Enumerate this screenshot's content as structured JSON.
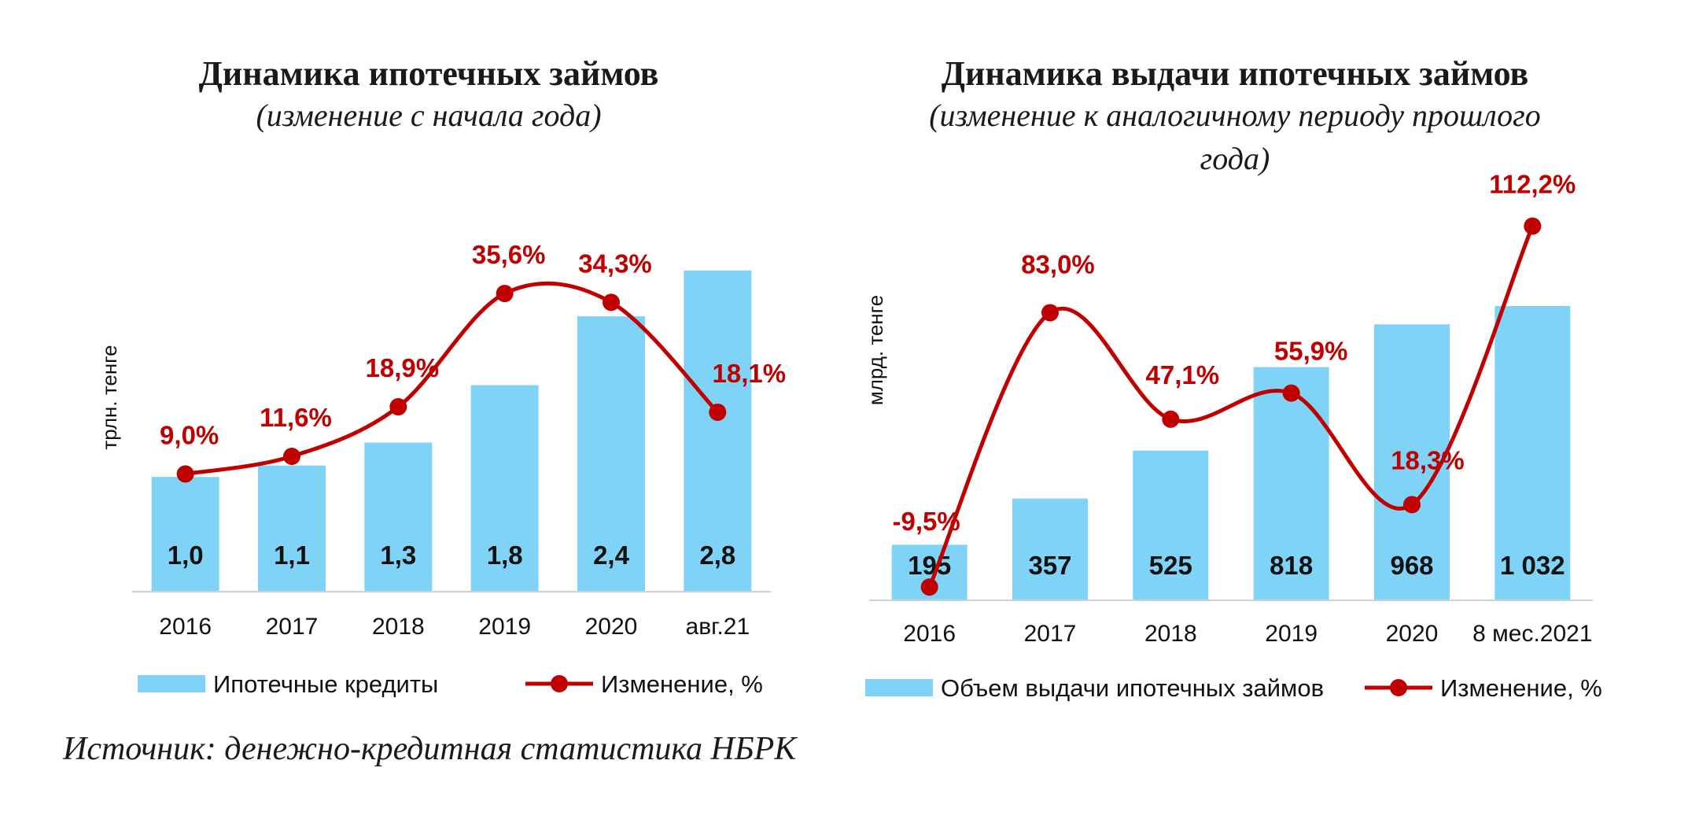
{
  "chart_data": [
    {
      "type": "bar",
      "title": "Динамика ипотечных займов",
      "subtitle": [
        "(изменение с начала года)"
      ],
      "ylabel": "трлн. тенге",
      "categories": [
        "2016",
        "2017",
        "2018",
        "2019",
        "2020",
        "авг.21"
      ],
      "bar_ylim": [
        0,
        3.1
      ],
      "line_ylim": [
        0,
        45
      ],
      "series": [
        {
          "name": "Ипотечные кредиты",
          "type": "bar",
          "values": [
            1.0,
            1.1,
            1.3,
            1.8,
            2.4,
            2.8
          ],
          "labels": [
            "1,0",
            "1,1",
            "1,3",
            "1,8",
            "2,4",
            "2,8"
          ],
          "color": "#7fd3f7"
        },
        {
          "name": "Изменение, %",
          "type": "line",
          "smooth": true,
          "values": [
            9.0,
            11.6,
            18.9,
            35.6,
            34.3,
            18.1
          ],
          "labels": [
            "9,0%",
            "11,6%",
            "18,9%",
            "35,6%",
            "34,3%",
            "18,1%"
          ],
          "color": "#c00000"
        }
      ],
      "grid": false,
      "legend": "bottom"
    },
    {
      "type": "bar",
      "title": "Динамика выдачи ипотечных займов",
      "subtitle": [
        "(изменение к аналогичному периоду прошлого",
        "года)"
      ],
      "ylabel": "млрд. тенге",
      "categories": [
        "2016",
        "2017",
        "2018",
        "2019",
        "2020",
        "8 мес.2021"
      ],
      "bar_ylim": [
        0,
        1250
      ],
      "line_ylim": [
        -10,
        120
      ],
      "series": [
        {
          "name": "Объем выдачи ипотечных займов",
          "type": "bar",
          "values": [
            195,
            357,
            525,
            818,
            968,
            1032
          ],
          "labels": [
            "195",
            "357",
            "525",
            "818",
            "968",
            "1 032"
          ],
          "color": "#7fd3f7"
        },
        {
          "name": "Изменение, %",
          "type": "line",
          "smooth": true,
          "values": [
            -9.5,
            83.0,
            47.1,
            55.9,
            18.3,
            112.2
          ],
          "labels": [
            "-9,5%",
            "83,0%",
            "47,1%",
            "55,9%",
            "18,3%",
            "112,2%"
          ],
          "color": "#c00000"
        }
      ],
      "grid": false,
      "legend": "bottom"
    }
  ],
  "source": "Источник: денежно-кредитная статистика НБРК"
}
